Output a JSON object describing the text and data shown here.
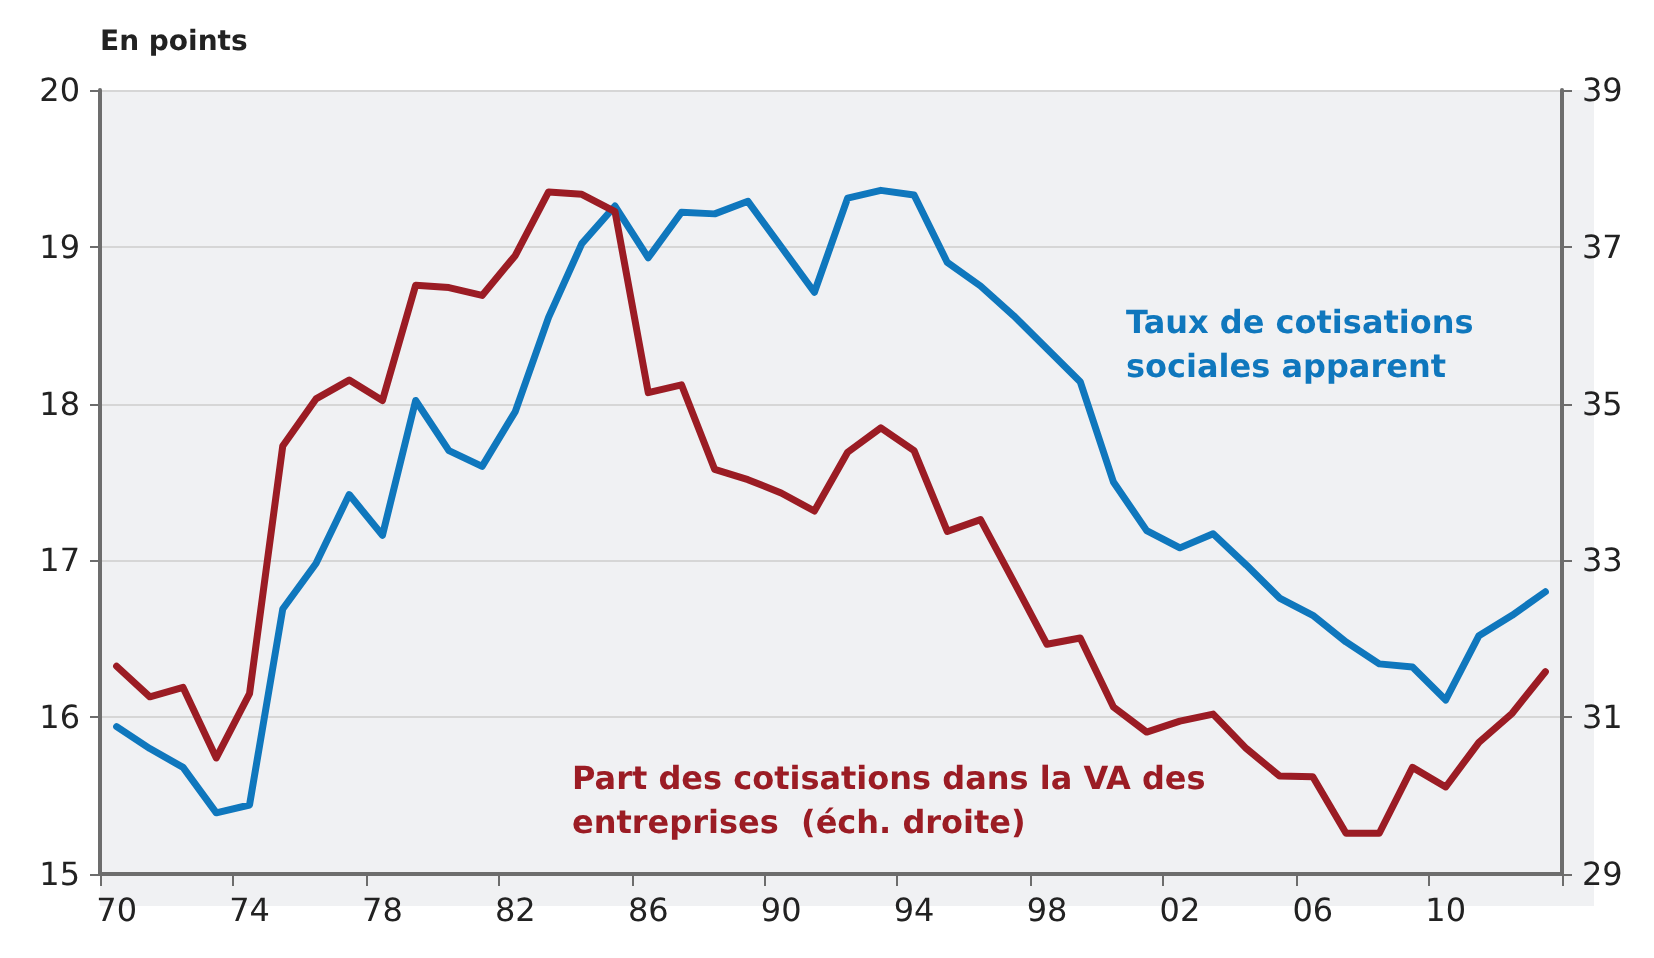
{
  "chart_data": {
    "type": "line",
    "ylabel": "En points",
    "categories": [
      "70",
      null,
      null,
      null,
      "74",
      null,
      null,
      null,
      "78",
      null,
      null,
      null,
      "82",
      null,
      null,
      null,
      "86",
      null,
      null,
      null,
      "90",
      null,
      null,
      null,
      "94",
      null,
      null,
      null,
      "98",
      null,
      null,
      null,
      "02",
      null,
      null,
      null,
      "06",
      null,
      null,
      null,
      "10",
      null,
      null,
      null
    ],
    "series": [
      {
        "name": "Taux de cotisations sociales apparent",
        "color": "#0f77bd",
        "values": [
          15.94,
          15.8,
          15.68,
          15.39,
          15.44,
          16.69,
          16.98,
          17.42,
          17.16,
          18.02,
          17.7,
          17.6,
          17.95,
          18.55,
          19.02,
          19.26,
          18.93,
          19.22,
          19.21,
          19.29,
          19.0,
          18.71,
          19.31,
          19.36,
          19.33,
          18.9,
          18.75,
          18.56,
          18.35,
          18.14,
          17.5,
          17.19,
          17.08,
          17.17,
          16.97,
          16.76,
          16.65,
          16.48,
          16.34,
          16.32,
          16.11,
          16.52,
          16.65,
          16.8
        ]
      },
      {
        "name": "Part des cotisations dans la VA des entreprises  (éch. droite)",
        "color": "#9b1c24",
        "axis": "y2",
        "values": [
          31.65,
          31.26,
          31.38,
          30.48,
          31.3,
          34.46,
          35.06,
          35.3,
          35.04,
          36.51,
          36.48,
          36.38,
          36.89,
          37.7,
          37.67,
          37.45,
          35.14,
          35.24,
          34.16,
          34.03,
          33.86,
          33.63,
          34.38,
          34.69,
          34.4,
          33.37,
          33.52,
          32.73,
          31.93,
          32.01,
          31.13,
          30.81,
          30.95,
          31.04,
          30.6,
          30.25,
          30.24,
          29.52,
          29.52,
          30.36,
          30.11,
          30.68,
          31.05,
          31.58
        ]
      }
    ],
    "ylim": [
      15,
      20
    ],
    "yticks": [
      15,
      16,
      17,
      18,
      19,
      20
    ],
    "y2lim": [
      29,
      39
    ],
    "y2ticks": [
      29,
      31,
      33,
      35,
      37,
      39
    ],
    "grid": "y",
    "marker": "none",
    "line_style": "solid"
  }
}
